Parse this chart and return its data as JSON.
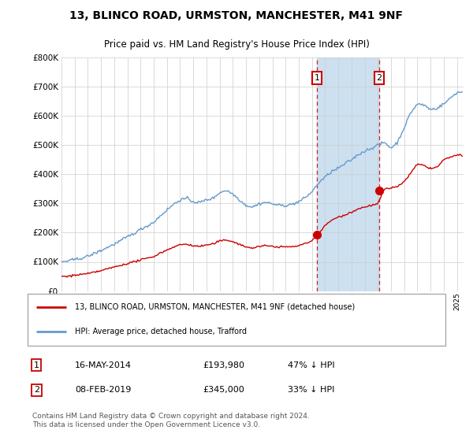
{
  "title": "13, BLINCO ROAD, URMSTON, MANCHESTER, M41 9NF",
  "subtitle": "Price paid vs. HM Land Registry's House Price Index (HPI)",
  "legend_line1": "13, BLINCO ROAD, URMSTON, MANCHESTER, M41 9NF (detached house)",
  "legend_line2": "HPI: Average price, detached house, Trafford",
  "transaction1_date": "16-MAY-2014",
  "transaction1_price": "£193,980",
  "transaction1_hpi": "47% ↓ HPI",
  "transaction1_year": 2014.37,
  "transaction1_value": 193980,
  "transaction2_date": "08-FEB-2019",
  "transaction2_price": "£345,000",
  "transaction2_hpi": "33% ↓ HPI",
  "transaction2_year": 2019.1,
  "transaction2_value": 345000,
  "footer": "Contains HM Land Registry data © Crown copyright and database right 2024.\nThis data is licensed under the Open Government Licence v3.0.",
  "red_color": "#cc0000",
  "blue_color": "#6699cc",
  "blue_fill_color": "#cce0f0",
  "ylim_min": 0,
  "ylim_max": 800000,
  "xlim_min": 1995,
  "xlim_max": 2025.5,
  "hpi_years": [
    1995,
    1995.5,
    1996,
    1996.5,
    1997,
    1997.5,
    1998,
    1998.5,
    1999,
    1999.5,
    2000,
    2000.5,
    2001,
    2001.5,
    2002,
    2002.5,
    2003,
    2003.5,
    2004,
    2004.5,
    2005,
    2005.5,
    2006,
    2006.5,
    2007,
    2007.5,
    2008,
    2008.5,
    2009,
    2009.5,
    2010,
    2010.5,
    2011,
    2011.5,
    2012,
    2012.5,
    2013,
    2013.5,
    2014,
    2014.5,
    2015,
    2015.5,
    2016,
    2016.5,
    2017,
    2017.5,
    2018,
    2018.5,
    2019,
    2019.5,
    2020,
    2020.5,
    2021,
    2021.5,
    2022,
    2022.5,
    2023,
    2023.5,
    2024,
    2024.5,
    2025
  ],
  "hpi_values": [
    100000,
    102000,
    107000,
    113000,
    120000,
    130000,
    140000,
    152000,
    163000,
    175000,
    188000,
    200000,
    213000,
    225000,
    238000,
    260000,
    280000,
    300000,
    315000,
    320000,
    308000,
    305000,
    315000,
    320000,
    340000,
    348000,
    335000,
    315000,
    295000,
    290000,
    300000,
    305000,
    300000,
    295000,
    295000,
    298000,
    305000,
    320000,
    340000,
    370000,
    390000,
    410000,
    420000,
    435000,
    450000,
    468000,
    480000,
    490000,
    500000,
    510000,
    490000,
    510000,
    560000,
    610000,
    640000,
    635000,
    620000,
    625000,
    640000,
    660000,
    680000
  ],
  "red_years": [
    1995,
    1995.5,
    1996,
    1996.5,
    1997,
    1997.5,
    1998,
    1998.5,
    1999,
    1999.5,
    2000,
    2000.5,
    2001,
    2001.5,
    2002,
    2002.5,
    2003,
    2003.5,
    2004,
    2004.5,
    2005,
    2005.5,
    2006,
    2006.5,
    2007,
    2007.5,
    2008,
    2008.5,
    2009,
    2009.5,
    2010,
    2010.5,
    2011,
    2011.5,
    2012,
    2012.5,
    2013,
    2013.5,
    2014,
    2014.5,
    2015,
    2015.5,
    2016,
    2016.5,
    2017,
    2017.5,
    2018,
    2018.5,
    2019,
    2019.5,
    2020,
    2020.5,
    2021,
    2021.5,
    2022,
    2022.5,
    2023,
    2023.5,
    2024,
    2024.5,
    2025
  ],
  "red_values": [
    50000,
    51000,
    54000,
    57000,
    60000,
    65000,
    70000,
    76000,
    82000,
    88000,
    94000,
    100000,
    106000,
    112000,
    118000,
    130000,
    140000,
    150000,
    158000,
    160000,
    154000,
    152000,
    157000,
    160000,
    170000,
    174000,
    168000,
    158000,
    148000,
    145000,
    150000,
    152000,
    150000,
    148000,
    148000,
    149000,
    152000,
    160000,
    170000,
    193980,
    220000,
    240000,
    250000,
    258000,
    268000,
    278000,
    285000,
    290000,
    295000,
    345000,
    348000,
    355000,
    370000,
    400000,
    430000,
    425000,
    415000,
    420000,
    445000,
    455000,
    460000
  ]
}
